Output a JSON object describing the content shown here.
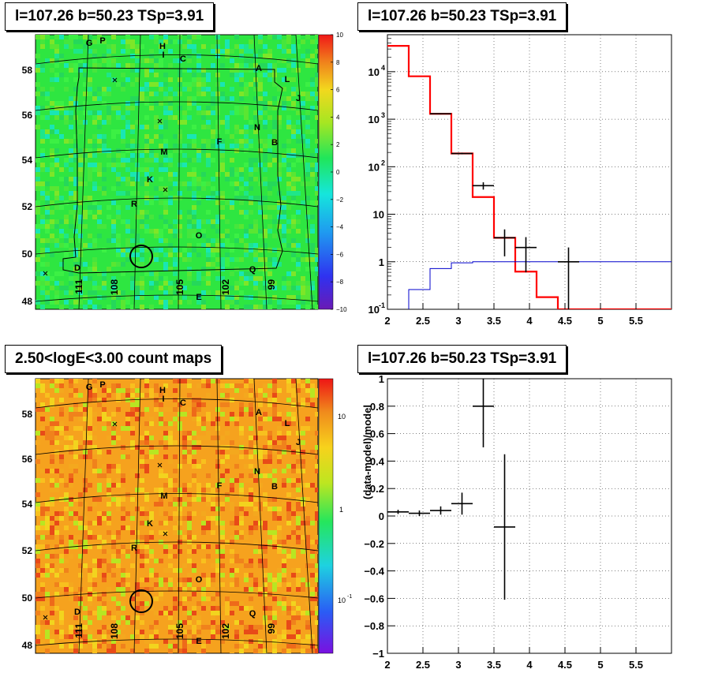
{
  "panels": {
    "map_top": {
      "title": "l=107.26 b=50.23 TSp=3.91",
      "x_ticks": [
        "111",
        "108",
        "105",
        "102",
        "99"
      ],
      "y_ticks": [
        "48",
        "50",
        "52",
        "54",
        "56",
        "58"
      ],
      "colorbar_labels": [
        "10",
        "8",
        "6",
        "4",
        "2",
        "0",
        "−2",
        "−4",
        "−6",
        "−8",
        "−10"
      ],
      "sources": [
        "A",
        "B",
        "C",
        "D",
        "E",
        "F",
        "G",
        "H",
        "I",
        "J",
        "K",
        "L",
        "M",
        "N",
        "O",
        "P",
        "Q",
        "R"
      ]
    },
    "map_bottom": {
      "title": "2.50<logE<3.00 count maps",
      "x_ticks": [
        "111",
        "108",
        "105",
        "102",
        "99"
      ],
      "y_ticks": [
        "48",
        "50",
        "52",
        "54",
        "56",
        "58"
      ],
      "colorbar_labels": [
        "10",
        "1",
        "10",
        "-1"
      ],
      "sources": [
        "A",
        "B",
        "C",
        "D",
        "E",
        "F",
        "G",
        "H",
        "I",
        "J",
        "K",
        "L",
        "M",
        "N",
        "O",
        "P",
        "Q",
        "R"
      ]
    },
    "spectrum": {
      "title": "l=107.26 b=50.23 TSp=3.91"
    },
    "residual": {
      "title": "l=107.26 b=50.23 TSp=3.91"
    }
  },
  "colors": {
    "model_line": "#ff0000",
    "background_line": "#0000cc",
    "data_points": "#000000",
    "map_top_fill": "#2ee641",
    "map_bottom_fill": "#f6a21e"
  },
  "chart_data": [
    {
      "type": "heatmap",
      "title": "l=107.26 b=50.23 TSp=3.91",
      "xlabel": "",
      "ylabel": "",
      "x_tick_labels": [
        "111",
        "108",
        "105",
        "102",
        "99"
      ],
      "y_tick_labels": [
        "48",
        "50",
        "52",
        "54",
        "56",
        "58"
      ],
      "color_range": [
        -10,
        10
      ],
      "colorbar_ticks": [
        10,
        8,
        6,
        4,
        2,
        0,
        -2,
        -4,
        -6,
        -8,
        -10
      ]
    },
    {
      "type": "heatmap",
      "title": "2.50<logE<3.00 count maps",
      "xlabel": "",
      "ylabel": "",
      "x_tick_labels": [
        "111",
        "108",
        "105",
        "102",
        "99"
      ],
      "y_tick_labels": [
        "48",
        "50",
        "52",
        "54",
        "56",
        "58"
      ],
      "color_scale": "log",
      "colorbar_ticks": [
        10,
        1,
        0.1
      ]
    },
    {
      "type": "line",
      "title": "l=107.26 b=50.23 TSp=3.91",
      "xlabel": "",
      "ylabel": "",
      "xlim": [
        2,
        6
      ],
      "ylim": [
        0.1,
        60000
      ],
      "yscale": "log",
      "grid": true,
      "x_ticks": [
        2,
        2.5,
        3,
        3.5,
        4,
        4.5,
        5,
        5.5
      ],
      "y_ticks": [
        0.1,
        1,
        10,
        100,
        1000,
        10000
      ],
      "series": [
        {
          "kind": "step",
          "edges": [
            2.0,
            2.3,
            2.6,
            2.9,
            3.2,
            3.5,
            3.8,
            4.1,
            4.4,
            6.0
          ],
          "values": [
            35000,
            8000,
            1300,
            190,
            23,
            3.2,
            0.62,
            0.18,
            0.1
          ]
        },
        {
          "kind": "step",
          "edges": [
            2.0,
            2.3,
            2.6,
            2.9,
            3.2,
            3.5,
            6.0
          ],
          "values": [
            0.05,
            0.26,
            0.72,
            0.95,
            1.0,
            1.0
          ]
        },
        {
          "kind": "points",
          "x": [
            2.75,
            3.05,
            3.35,
            3.65,
            3.95,
            4.55
          ],
          "y": [
            1300,
            190,
            40,
            3.2,
            2,
            1
          ],
          "xerr": [
            0.15,
            0.15,
            0.15,
            0.15,
            0.15,
            0.15
          ],
          "ylow": [
            1260,
            183,
            33,
            1.3,
            0.6,
            0.06
          ],
          "yhigh": [
            1340,
            197,
            47,
            4.8,
            3.3,
            2.0
          ]
        }
      ]
    },
    {
      "type": "scatter",
      "title": "l=107.26 b=50.23 TSp=3.91",
      "xlabel": "",
      "ylabel": "(data-model)/model",
      "xlim": [
        2,
        6
      ],
      "ylim": [
        -1,
        1
      ],
      "grid": true,
      "x_ticks": [
        2,
        2.5,
        3,
        3.5,
        4,
        4.5,
        5,
        5.5
      ],
      "y_ticks": [
        -1,
        -0.8,
        -0.6,
        -0.4,
        -0.2,
        0,
        0.2,
        0.4,
        0.6,
        0.8,
        1
      ],
      "series": [
        {
          "x": [
            2.15,
            2.45,
            2.75,
            3.05,
            3.35,
            3.65
          ],
          "y": [
            0.03,
            0.02,
            0.04,
            0.09,
            0.8,
            -0.08
          ],
          "xerr": [
            0.15,
            0.15,
            0.15,
            0.15,
            0.15,
            0.15
          ],
          "yerr": [
            0.015,
            0.02,
            0.03,
            0.08,
            0.3,
            0.53
          ]
        }
      ]
    }
  ]
}
